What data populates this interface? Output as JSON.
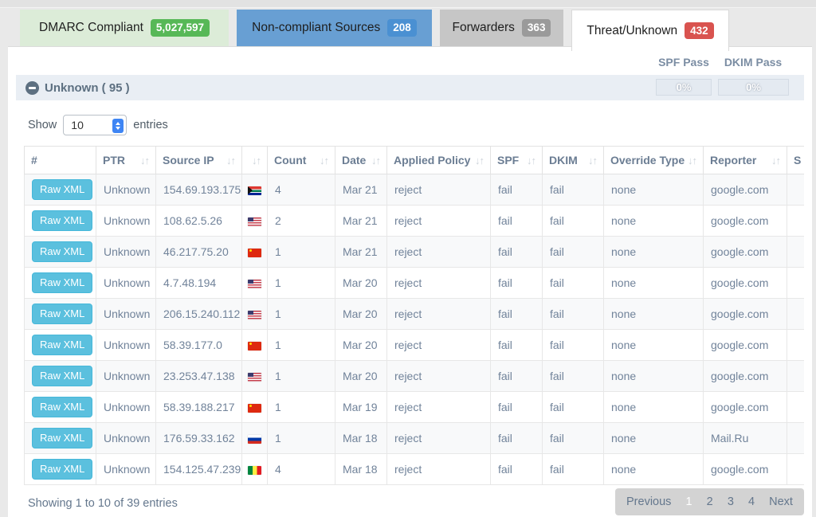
{
  "tabs": [
    {
      "label": "DMARC Compliant",
      "count": "5,027,597",
      "style": "green",
      "badge_color": "#57b857",
      "active": false
    },
    {
      "label": "Non-compliant Sources",
      "count": "208",
      "style": "blue",
      "badge_color": "#4a90d2",
      "active": false
    },
    {
      "label": "Forwarders",
      "count": "363",
      "style": "gray",
      "badge_color": "#9a9a9a",
      "active": false
    },
    {
      "label": "Threat/Unknown",
      "count": "432",
      "style": "white",
      "badge_color": "#d9534f",
      "active": true
    }
  ],
  "pass_columns": {
    "spf_label": "SPF Pass",
    "dkim_label": "DKIM Pass",
    "spf_value": "0%",
    "dkim_value": "0%"
  },
  "section": {
    "title": "Unknown ( 95 )"
  },
  "show_entries": {
    "prefix": "Show",
    "selected": "10",
    "suffix": "entries"
  },
  "table": {
    "raw_xml_label": "Raw XML",
    "sort_icon": "↓↑",
    "columns": [
      "action",
      "ptr",
      "source_ip",
      "flag",
      "count",
      "date",
      "applied_policy",
      "spf",
      "dkim",
      "override_type",
      "reporter",
      "extra"
    ],
    "headers": [
      {
        "label": "#",
        "sortable": false
      },
      {
        "label": "PTR",
        "sortable": true
      },
      {
        "label": "Source IP",
        "sortable": true
      },
      {
        "label": "",
        "sortable": true
      },
      {
        "label": "Count",
        "sortable": true
      },
      {
        "label": "Date",
        "sortable": true
      },
      {
        "label": "Applied Policy",
        "sortable": true
      },
      {
        "label": "SPF",
        "sortable": true
      },
      {
        "label": "DKIM",
        "sortable": true
      },
      {
        "label": "Override Type",
        "sortable": true
      },
      {
        "label": "Reporter",
        "sortable": true
      },
      {
        "label": "S",
        "sortable": false
      }
    ],
    "rows": [
      {
        "ptr": "Unknown",
        "source_ip": "154.69.193.175",
        "flag": "za",
        "count": "4",
        "date": "Mar 21",
        "applied_policy": "reject",
        "spf": "fail",
        "dkim": "fail",
        "override_type": "none",
        "reporter": "google.com",
        "extra": ""
      },
      {
        "ptr": "Unknown",
        "source_ip": "108.62.5.26",
        "flag": "us",
        "count": "2",
        "date": "Mar 21",
        "applied_policy": "reject",
        "spf": "fail",
        "dkim": "fail",
        "override_type": "none",
        "reporter": "google.com",
        "extra": ""
      },
      {
        "ptr": "Unknown",
        "source_ip": "46.217.75.20",
        "flag": "cn",
        "count": "1",
        "date": "Mar 21",
        "applied_policy": "reject",
        "spf": "fail",
        "dkim": "fail",
        "override_type": "none",
        "reporter": "google.com",
        "extra": ""
      },
      {
        "ptr": "Unknown",
        "source_ip": "4.7.48.194",
        "flag": "us",
        "count": "1",
        "date": "Mar 20",
        "applied_policy": "reject",
        "spf": "fail",
        "dkim": "fail",
        "override_type": "none",
        "reporter": "google.com",
        "extra": ""
      },
      {
        "ptr": "Unknown",
        "source_ip": "206.15.240.112",
        "flag": "us",
        "count": "1",
        "date": "Mar 20",
        "applied_policy": "reject",
        "spf": "fail",
        "dkim": "fail",
        "override_type": "none",
        "reporter": "google.com",
        "extra": ""
      },
      {
        "ptr": "Unknown",
        "source_ip": "58.39.177.0",
        "flag": "cn",
        "count": "1",
        "date": "Mar 20",
        "applied_policy": "reject",
        "spf": "fail",
        "dkim": "fail",
        "override_type": "none",
        "reporter": "google.com",
        "extra": ""
      },
      {
        "ptr": "Unknown",
        "source_ip": "23.253.47.138",
        "flag": "us",
        "count": "1",
        "date": "Mar 20",
        "applied_policy": "reject",
        "spf": "fail",
        "dkim": "fail",
        "override_type": "none",
        "reporter": "google.com",
        "extra": ""
      },
      {
        "ptr": "Unknown",
        "source_ip": "58.39.188.217",
        "flag": "cn",
        "count": "1",
        "date": "Mar 19",
        "applied_policy": "reject",
        "spf": "fail",
        "dkim": "fail",
        "override_type": "none",
        "reporter": "google.com",
        "extra": ""
      },
      {
        "ptr": "Unknown",
        "source_ip": "176.59.33.162",
        "flag": "ru",
        "count": "1",
        "date": "Mar 18",
        "applied_policy": "reject",
        "spf": "fail",
        "dkim": "fail",
        "override_type": "none",
        "reporter": "Mail.Ru",
        "extra": ""
      },
      {
        "ptr": "Unknown",
        "source_ip": "154.125.47.239",
        "flag": "sn",
        "count": "4",
        "date": "Mar 18",
        "applied_policy": "reject",
        "spf": "fail",
        "dkim": "fail",
        "override_type": "none",
        "reporter": "google.com",
        "extra": ""
      }
    ]
  },
  "footer": {
    "summary": "Showing 1 to 10 of 39 entries",
    "pagination": [
      "Previous",
      "1",
      "2",
      "3",
      "4",
      "Next"
    ],
    "active_page": "1"
  },
  "colors": {
    "compliant_badge": "#57b857",
    "noncompliant_badge": "#4a90d2",
    "forwarders_badge": "#9a9a9a",
    "threat_badge": "#d9534f",
    "raw_xml_button": "#5bc0de",
    "section_band": "#e9eef4",
    "header_text": "#6b7d93"
  }
}
